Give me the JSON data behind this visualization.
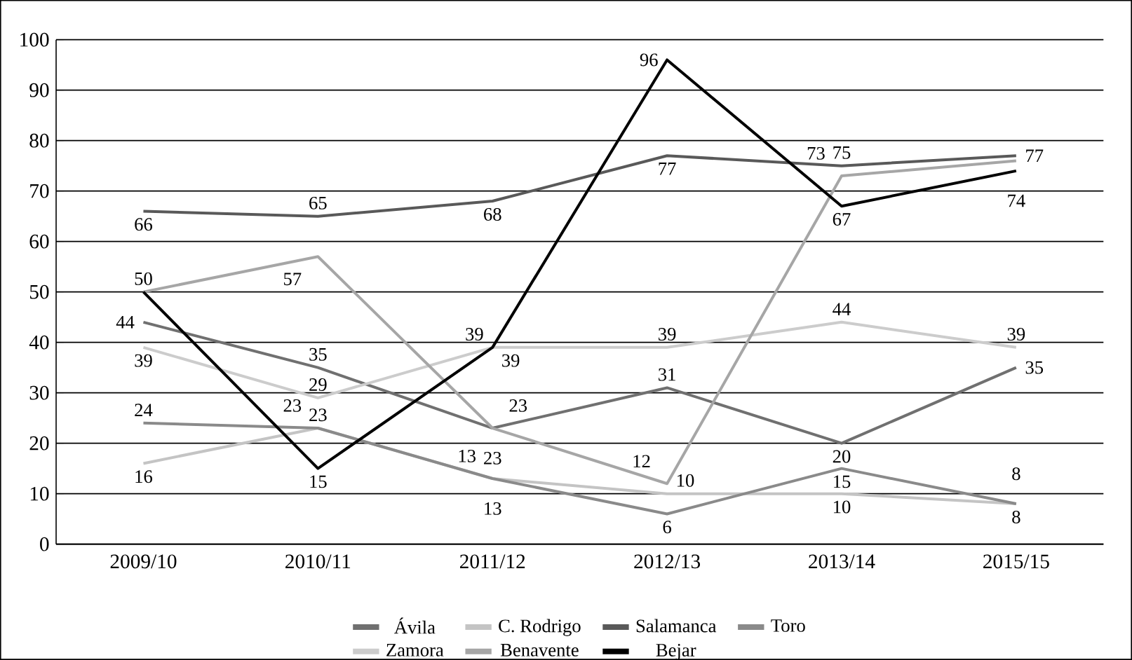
{
  "chart_data": {
    "type": "line",
    "categories": [
      "2009/10",
      "2010/11",
      "2011/12",
      "2012/13",
      "2013/14",
      "2015/15"
    ],
    "series": [
      {
        "name": "Ávila",
        "color": "#707070",
        "values": [
          44,
          35,
          23,
          31,
          20,
          35
        ],
        "value_labels": [
          "44",
          "35",
          "23",
          "31",
          "20",
          "35"
        ]
      },
      {
        "name": "C. Rodrigo",
        "color": "#c4c4c4",
        "values": [
          16,
          23,
          13,
          10,
          10,
          8
        ],
        "value_labels": [
          "16",
          "23",
          "13",
          "10",
          "10",
          "8"
        ]
      },
      {
        "name": "Salamanca",
        "color": "#595959",
        "values": [
          66,
          65,
          68,
          77,
          75,
          77
        ],
        "value_labels": [
          "66",
          "65",
          "68",
          "77",
          "75",
          "77"
        ]
      },
      {
        "name": "Toro",
        "color": "#8a8a8a",
        "values": [
          24,
          23,
          13,
          6,
          15,
          8
        ],
        "value_labels": [
          "24",
          "23",
          "13",
          "6",
          "15",
          "8"
        ]
      },
      {
        "name": "Zamora",
        "color": "#cccccc",
        "values": [
          39,
          29,
          39,
          39,
          44,
          39
        ],
        "value_labels": [
          "39",
          "29",
          "39",
          "39",
          "44",
          "39"
        ]
      },
      {
        "name": "Benavente",
        "color": "#a6a6a6",
        "values": [
          50,
          57,
          23,
          12,
          73,
          76
        ],
        "value_labels": [
          null,
          "57",
          "23",
          "12",
          "73",
          null
        ]
      },
      {
        "name": "Bejar",
        "color": "#000000",
        "values": [
          50,
          15,
          39,
          96,
          67,
          74
        ],
        "value_labels": [
          "50",
          "15",
          "39",
          "96",
          "67",
          "74"
        ]
      }
    ],
    "ylim": [
      0,
      100
    ],
    "yticks": [
      0,
      10,
      20,
      30,
      40,
      50,
      60,
      70,
      80,
      90,
      100
    ],
    "grid": "y",
    "legend": "bottom",
    "marker": "none",
    "line_style": "solid"
  }
}
